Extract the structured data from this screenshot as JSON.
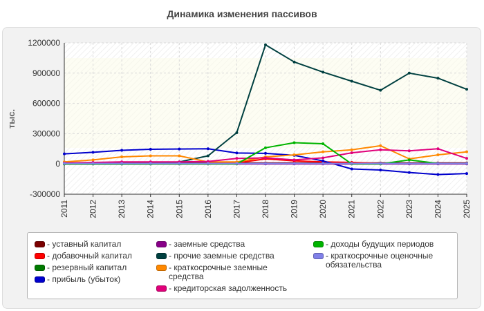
{
  "chart_data": {
    "type": "line",
    "title": "Динамика изменения пассивов",
    "ylabel": "тыс.",
    "xlabel": "",
    "x": [
      "2011",
      "2012",
      "2013",
      "2014",
      "2015",
      "2016",
      "2017",
      "2018",
      "2019",
      "2020",
      "2021",
      "2022",
      "2023",
      "2024",
      "2025"
    ],
    "ylim": [
      -300000,
      1200000
    ],
    "yticks": [
      -300000,
      0,
      300000,
      600000,
      900000,
      1200000
    ],
    "ytick_labels": [
      "-300000",
      "0",
      "300000",
      "600000",
      "900000",
      "1200000"
    ],
    "grid": true,
    "legend_position": "bottom",
    "series": [
      {
        "name": "- уставный капитал",
        "color": "#7a0000",
        "values": [
          10000,
          10000,
          10000,
          10000,
          10000,
          10000,
          10000,
          10000,
          10000,
          10000,
          10000,
          10000,
          10000,
          10000,
          10000
        ]
      },
      {
        "name": "- добавочный капитал",
        "color": "#ff0000",
        "values": [
          5000,
          5000,
          5000,
          5000,
          5000,
          5000,
          10000,
          50000,
          30000,
          20000,
          15000,
          5000,
          5000,
          5000,
          5000
        ]
      },
      {
        "name": "- резервный капитал",
        "color": "#007a00",
        "values": [
          2000,
          2000,
          2000,
          2000,
          2000,
          2000,
          2000,
          2000,
          2000,
          2000,
          2000,
          2000,
          2000,
          2000,
          2000
        ]
      },
      {
        "name": "- прибыль (убыток)",
        "color": "#0000cc",
        "values": [
          100000,
          115000,
          135000,
          145000,
          148000,
          150000,
          108000,
          105000,
          85000,
          30000,
          -50000,
          -60000,
          -85000,
          -105000,
          -95000
        ]
      },
      {
        "name": "- заемные средства",
        "color": "#880088",
        "values": [
          0,
          0,
          0,
          0,
          0,
          0,
          0,
          0,
          0,
          0,
          0,
          0,
          0,
          0,
          0
        ]
      },
      {
        "name": "- прочие заемные средства",
        "color": "#004040",
        "values": [
          0,
          0,
          0,
          0,
          20000,
          80000,
          310000,
          1180000,
          1010000,
          910000,
          820000,
          730000,
          900000,
          850000,
          740000
        ]
      },
      {
        "name": "- краткосрочные заемные средства",
        "color": "#ff8800",
        "values": [
          20000,
          40000,
          70000,
          80000,
          80000,
          20000,
          20000,
          70000,
          90000,
          120000,
          140000,
          180000,
          50000,
          90000,
          120000
        ]
      },
      {
        "name": "- кредиторская задолженность",
        "color": "#e0007a",
        "values": [
          10000,
          15000,
          20000,
          20000,
          20000,
          25000,
          55000,
          60000,
          40000,
          60000,
          110000,
          140000,
          130000,
          150000,
          55000
        ]
      },
      {
        "name": "- доходы будущих периодов",
        "color": "#00b400",
        "values": [
          0,
          0,
          0,
          0,
          0,
          0,
          0,
          160000,
          210000,
          200000,
          0,
          0,
          40000,
          5000,
          5000
        ]
      },
      {
        "name": "- краткосрочные оценочные обязательства",
        "color": "#8080e8",
        "values": [
          5000,
          5000,
          5000,
          5000,
          5000,
          5000,
          5000,
          5000,
          5000,
          5000,
          5000,
          5000,
          5000,
          5000,
          5000
        ]
      }
    ]
  }
}
